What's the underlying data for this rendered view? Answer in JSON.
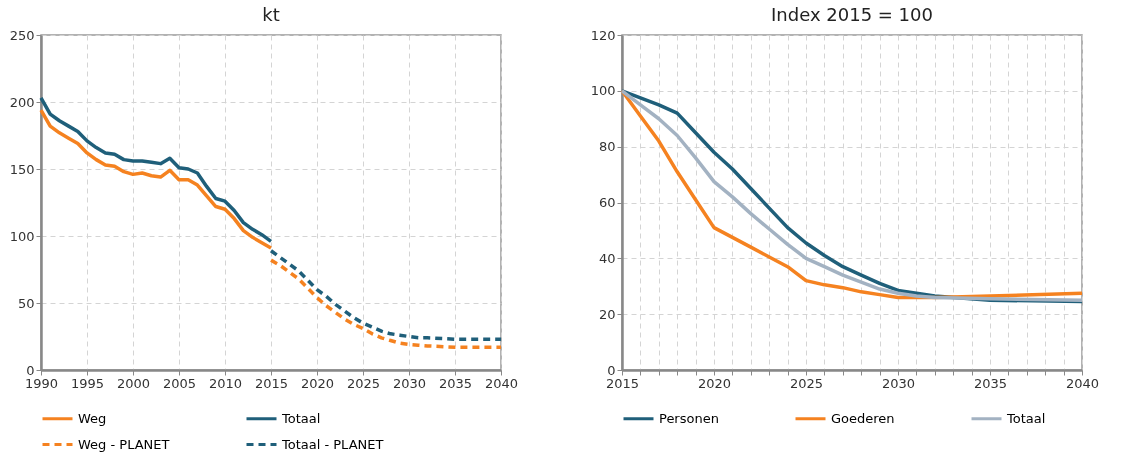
{
  "chart_data": [
    {
      "type": "line",
      "title": "kt",
      "xlim": [
        1990,
        2040
      ],
      "xticks": [
        1990,
        1995,
        2000,
        2005,
        2010,
        2015,
        2020,
        2025,
        2030,
        2035,
        2040
      ],
      "ylim": [
        0,
        250
      ],
      "yticks": [
        0,
        50,
        100,
        150,
        200,
        250
      ],
      "grid": true,
      "legend": "bottom",
      "series": [
        {
          "name": "Weg",
          "color": "#f58220",
          "line_style": "solid",
          "x": [
            1990,
            1991,
            1992,
            1993,
            1994,
            1995,
            1996,
            1997,
            1998,
            1999,
            2000,
            2001,
            2002,
            2003,
            2004,
            2005,
            2006,
            2007,
            2008,
            2009,
            2010,
            2011,
            2012,
            2013,
            2014,
            2015
          ],
          "values": [
            194,
            182,
            177,
            173,
            169,
            162,
            157,
            153,
            152,
            148,
            146,
            147,
            145,
            144,
            149,
            142,
            142,
            138,
            130,
            122,
            120,
            113,
            104,
            99,
            95,
            91
          ]
        },
        {
          "name": "Totaal",
          "color": "#1f5f7a",
          "line_style": "solid",
          "x": [
            1990,
            1991,
            1992,
            1993,
            1994,
            1995,
            1996,
            1997,
            1998,
            1999,
            2000,
            2001,
            2002,
            2003,
            2004,
            2005,
            2006,
            2007,
            2008,
            2009,
            2010,
            2011,
            2012,
            2013,
            2014,
            2015
          ],
          "values": [
            203,
            191,
            186,
            182,
            178,
            171,
            166,
            162,
            161,
            157,
            156,
            156,
            155,
            154,
            158,
            151,
            150,
            147,
            137,
            128,
            126,
            119,
            110,
            105,
            101,
            96
          ]
        },
        {
          "name": "Weg - PLANET",
          "color": "#f58220",
          "line_style": "dashed",
          "x": [
            2015,
            2016,
            2017,
            2018,
            2019,
            2020,
            2021,
            2022,
            2023,
            2024,
            2025,
            2026,
            2027,
            2028,
            2029,
            2030,
            2031,
            2032,
            2035,
            2040
          ],
          "values": [
            82,
            78,
            73,
            68,
            61,
            54,
            48,
            43,
            38,
            34,
            31,
            27,
            24,
            22,
            20,
            19,
            18.5,
            18,
            17,
            17
          ]
        },
        {
          "name": "Totaal - PLANET",
          "color": "#1f5f7a",
          "line_style": "dashed",
          "x": [
            2015,
            2016,
            2017,
            2018,
            2019,
            2020,
            2021,
            2022,
            2023,
            2024,
            2025,
            2026,
            2027,
            2028,
            2029,
            2030,
            2031,
            2032,
            2035,
            2040
          ],
          "values": [
            89,
            84,
            79,
            74,
            67,
            60,
            55,
            49,
            44,
            39,
            35,
            32,
            29,
            27,
            26,
            25,
            24,
            24,
            23,
            23
          ]
        }
      ]
    },
    {
      "type": "line",
      "title": "Index 2015 = 100",
      "xlim": [
        2015,
        2040
      ],
      "xticks": [
        2015,
        {
          "value": 2016,
          "label": null
        },
        {
          "value": 2017,
          "label": null
        },
        {
          "value": 2018,
          "label": null
        },
        {
          "value": 2019,
          "label": null
        },
        2020,
        {
          "value": 2021,
          "label": null
        },
        {
          "value": 2022,
          "label": null
        },
        {
          "value": 2023,
          "label": null
        },
        {
          "value": 2024,
          "label": null
        },
        2025,
        {
          "value": 2026,
          "label": null
        },
        {
          "value": 2027,
          "label": null
        },
        {
          "value": 2028,
          "label": null
        },
        {
          "value": 2029,
          "label": null
        },
        2030,
        {
          "value": 2031,
          "label": null
        },
        {
          "value": 2032,
          "label": null
        },
        {
          "value": 2033,
          "label": null
        },
        {
          "value": 2034,
          "label": null
        },
        2035,
        {
          "value": 2036,
          "label": null
        },
        {
          "value": 2037,
          "label": null
        },
        {
          "value": 2038,
          "label": null
        },
        {
          "value": 2039,
          "label": null
        },
        2040
      ],
      "ylim": [
        0,
        120
      ],
      "yticks": [
        0,
        20,
        40,
        60,
        80,
        100,
        120
      ],
      "grid": true,
      "legend": "bottom",
      "x": [
        2015,
        2016,
        2017,
        2018,
        2019,
        2020,
        2021,
        2022,
        2023,
        2024,
        2025,
        2026,
        2027,
        2028,
        2029,
        2030,
        2031,
        2032,
        2035,
        2040
      ],
      "series": [
        {
          "name": "Personen",
          "color": "#1f5f7a",
          "values": [
            100,
            97.5,
            95,
            92,
            85,
            78,
            72,
            65,
            58,
            51,
            45.5,
            41,
            37,
            34,
            31,
            28.5,
            27.5,
            26.5,
            25,
            24.5
          ]
        },
        {
          "name": "Goederen",
          "color": "#f58220",
          "values": [
            100,
            91,
            82,
            71,
            61,
            51,
            47.5,
            44,
            40.5,
            37,
            32,
            30.5,
            29.5,
            28,
            27,
            26,
            26,
            26,
            26.5,
            27.5
          ]
        },
        {
          "name": "Totaal",
          "color": "#a3b2c2",
          "values": [
            100,
            95,
            90,
            84,
            76,
            67.5,
            62,
            56,
            50.5,
            45,
            40,
            37,
            34,
            31.5,
            29,
            27.5,
            26.5,
            26,
            25.5,
            25
          ]
        }
      ]
    }
  ]
}
